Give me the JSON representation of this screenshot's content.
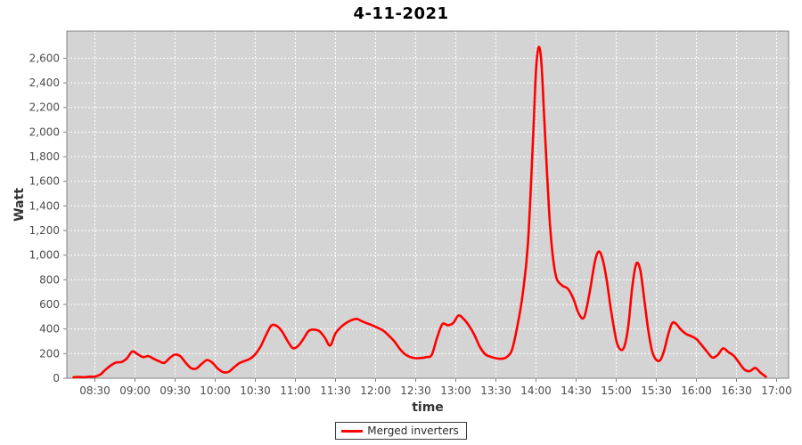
{
  "chart_data": {
    "type": "line",
    "title": "4-11-2021",
    "xlabel": "time",
    "ylabel": "Watt",
    "legend_label": "Merged inverters",
    "legend_position": "bottom-center",
    "grid": true,
    "grid_style": "dashed-white",
    "xlim_minutes": [
      489,
      1029
    ],
    "ylim": [
      0,
      2820
    ],
    "x_ticks": [
      "08:30",
      "09:00",
      "09:30",
      "10:00",
      "10:30",
      "11:00",
      "11:30",
      "12:00",
      "12:30",
      "13:00",
      "13:30",
      "14:00",
      "14:30",
      "15:00",
      "15:30",
      "16:00",
      "16:30",
      "17:00"
    ],
    "y_ticks": [
      {
        "label": "0",
        "value": 0
      },
      {
        "label": "200",
        "value": 200
      },
      {
        "label": "400",
        "value": 400
      },
      {
        "label": "600",
        "value": 600
      },
      {
        "label": "800",
        "value": 800
      },
      {
        "label": "1,000",
        "value": 1000
      },
      {
        "label": "1,200",
        "value": 1200
      },
      {
        "label": "1,400",
        "value": 1400
      },
      {
        "label": "1,600",
        "value": 1600
      },
      {
        "label": "1,800",
        "value": 1800
      },
      {
        "label": "2,000",
        "value": 2000
      },
      {
        "label": "2,200",
        "value": 2200
      },
      {
        "label": "2,400",
        "value": 2400
      },
      {
        "label": "2,600",
        "value": 2600
      }
    ],
    "colors": {
      "series": "#ff0000",
      "plot_background": "#d4d4d4",
      "grid": "#ffffff",
      "axis": "#808080",
      "tick_label": "#4d4d4d",
      "axis_title": "#333333",
      "title": "#000000"
    },
    "series": [
      {
        "name": "Merged inverters",
        "color": "#ff0000",
        "points": [
          [
            "08:14",
            8
          ],
          [
            "08:18",
            11
          ],
          [
            "08:22",
            9
          ],
          [
            "08:26",
            13
          ],
          [
            "08:30",
            14
          ],
          [
            "08:34",
            30
          ],
          [
            "08:38",
            70
          ],
          [
            "08:42",
            105
          ],
          [
            "08:46",
            128
          ],
          [
            "08:50",
            132
          ],
          [
            "08:54",
            162
          ],
          [
            "08:58",
            218
          ],
          [
            "09:02",
            195
          ],
          [
            "09:06",
            172
          ],
          [
            "09:10",
            180
          ],
          [
            "09:14",
            158
          ],
          [
            "09:18",
            138
          ],
          [
            "09:22",
            125
          ],
          [
            "09:26",
            165
          ],
          [
            "09:30",
            192
          ],
          [
            "09:34",
            178
          ],
          [
            "09:38",
            125
          ],
          [
            "09:42",
            82
          ],
          [
            "09:46",
            80
          ],
          [
            "09:50",
            118
          ],
          [
            "09:54",
            148
          ],
          [
            "09:58",
            125
          ],
          [
            "10:02",
            78
          ],
          [
            "10:06",
            50
          ],
          [
            "10:10",
            52
          ],
          [
            "10:14",
            88
          ],
          [
            "10:18",
            122
          ],
          [
            "10:22",
            140
          ],
          [
            "10:26",
            158
          ],
          [
            "10:30",
            195
          ],
          [
            "10:34",
            258
          ],
          [
            "10:38",
            350
          ],
          [
            "10:42",
            428
          ],
          [
            "10:46",
            425
          ],
          [
            "10:50",
            380
          ],
          [
            "10:54",
            305
          ],
          [
            "10:58",
            245
          ],
          [
            "11:02",
            262
          ],
          [
            "11:06",
            320
          ],
          [
            "11:10",
            385
          ],
          [
            "11:14",
            395
          ],
          [
            "11:18",
            382
          ],
          [
            "11:22",
            330
          ],
          [
            "11:26",
            266
          ],
          [
            "11:30",
            365
          ],
          [
            "11:34",
            415
          ],
          [
            "11:38",
            450
          ],
          [
            "11:42",
            472
          ],
          [
            "11:46",
            482
          ],
          [
            "11:50",
            462
          ],
          [
            "11:54",
            445
          ],
          [
            "11:58",
            428
          ],
          [
            "12:02",
            408
          ],
          [
            "12:06",
            385
          ],
          [
            "12:10",
            345
          ],
          [
            "12:14",
            300
          ],
          [
            "12:18",
            240
          ],
          [
            "12:22",
            195
          ],
          [
            "12:26",
            172
          ],
          [
            "12:30",
            163
          ],
          [
            "12:34",
            165
          ],
          [
            "12:38",
            172
          ],
          [
            "12:42",
            190
          ],
          [
            "12:46",
            330
          ],
          [
            "12:50",
            440
          ],
          [
            "12:54",
            430
          ],
          [
            "12:58",
            448
          ],
          [
            "13:02",
            510
          ],
          [
            "13:06",
            480
          ],
          [
            "13:10",
            425
          ],
          [
            "13:14",
            350
          ],
          [
            "13:18",
            255
          ],
          [
            "13:22",
            195
          ],
          [
            "13:26",
            175
          ],
          [
            "13:30",
            163
          ],
          [
            "13:34",
            158
          ],
          [
            "13:38",
            172
          ],
          [
            "13:42",
            230
          ],
          [
            "13:46",
            420
          ],
          [
            "13:50",
            680
          ],
          [
            "13:54",
            1100
          ],
          [
            "13:58",
            2000
          ],
          [
            "14:00",
            2500
          ],
          [
            "14:02",
            2690
          ],
          [
            "14:04",
            2570
          ],
          [
            "14:06",
            2150
          ],
          [
            "14:08",
            1720
          ],
          [
            "14:10",
            1320
          ],
          [
            "14:12",
            1050
          ],
          [
            "14:14",
            880
          ],
          [
            "14:16",
            795
          ],
          [
            "14:20",
            750
          ],
          [
            "14:24",
            725
          ],
          [
            "14:28",
            645
          ],
          [
            "14:32",
            525
          ],
          [
            "14:36",
            495
          ],
          [
            "14:40",
            690
          ],
          [
            "14:44",
            945
          ],
          [
            "14:47",
            1030
          ],
          [
            "14:50",
            960
          ],
          [
            "14:53",
            790
          ],
          [
            "14:56",
            560
          ],
          [
            "15:00",
            310
          ],
          [
            "15:03",
            235
          ],
          [
            "15:06",
            255
          ],
          [
            "15:09",
            420
          ],
          [
            "15:12",
            740
          ],
          [
            "15:15",
            930
          ],
          [
            "15:18",
            880
          ],
          [
            "15:21",
            640
          ],
          [
            "15:24",
            390
          ],
          [
            "15:27",
            215
          ],
          [
            "15:30",
            150
          ],
          [
            "15:33",
            148
          ],
          [
            "15:36",
            230
          ],
          [
            "15:39",
            360
          ],
          [
            "15:42",
            450
          ],
          [
            "15:45",
            440
          ],
          [
            "15:48",
            400
          ],
          [
            "15:52",
            362
          ],
          [
            "15:56",
            342
          ],
          [
            "16:00",
            318
          ],
          [
            "16:04",
            268
          ],
          [
            "16:08",
            215
          ],
          [
            "16:12",
            168
          ],
          [
            "16:16",
            190
          ],
          [
            "16:20",
            243
          ],
          [
            "16:24",
            212
          ],
          [
            "16:28",
            182
          ],
          [
            "16:32",
            125
          ],
          [
            "16:36",
            70
          ],
          [
            "16:40",
            58
          ],
          [
            "16:44",
            84
          ],
          [
            "16:48",
            45
          ],
          [
            "16:52",
            12
          ]
        ]
      }
    ]
  }
}
